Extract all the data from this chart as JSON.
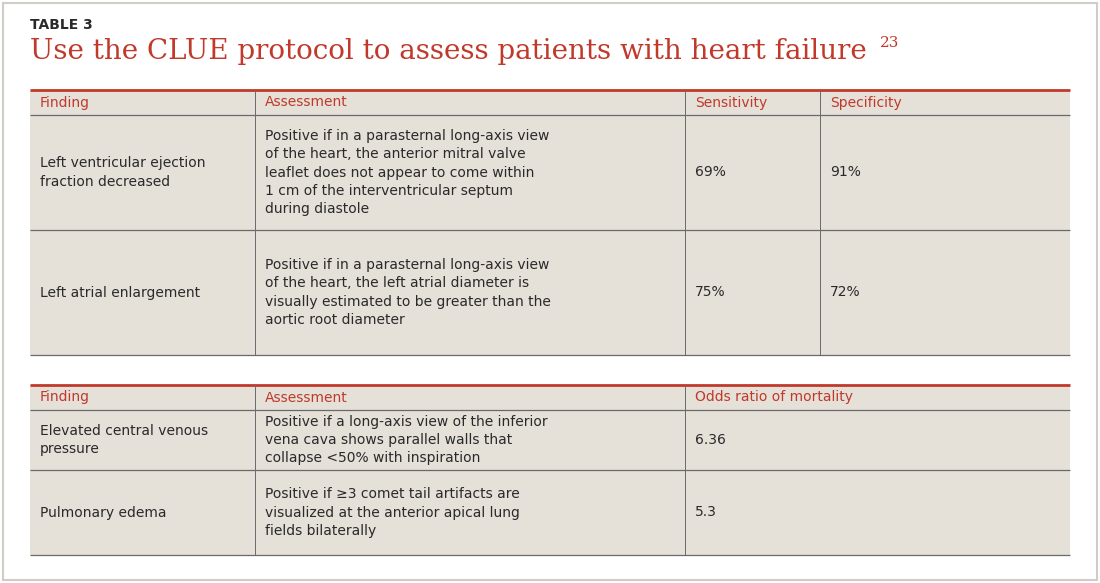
{
  "background_color": "#ffffff",
  "outer_border_color": "#d0ccc8",
  "table_bg_color": "#e5e0d8",
  "header_text_color": "#c0392b",
  "body_text_color": "#2a2a2a",
  "title_label": "TABLE 3",
  "title_main": "Use the CLUE protocol to assess patients with heart failure",
  "title_superscript": "23",
  "red_line_color": "#c0392b",
  "dark_line_color": "#6a6a6a",
  "table1": {
    "headers": [
      "Finding",
      "Assessment",
      "Sensitivity",
      "Specificity"
    ],
    "rows": [
      {
        "finding": "Left ventricular ejection\nfraction decreased",
        "assessment": "Positive if in a parasternal long-axis view\nof the heart, the anterior mitral valve\nleaflet does not appear to come within\n1 cm of the interventricular septum\nduring diastole",
        "sensitivity": "69%",
        "specificity": "91%"
      },
      {
        "finding": "Left atrial enlargement",
        "assessment": "Positive if in a parasternal long-axis view\nof the heart, the left atrial diameter is\nvisually estimated to be greater than the\naortic root diameter",
        "sensitivity": "75%",
        "specificity": "72%"
      }
    ]
  },
  "table2": {
    "headers": [
      "Finding",
      "Assessment",
      "Odds ratio of mortality"
    ],
    "rows": [
      {
        "finding": "Elevated central venous\npressure",
        "assessment": "Positive if a long-axis view of the inferior\nvena cava shows parallel walls that\ncollapse <50% with inspiration",
        "odds": "6.36"
      },
      {
        "finding": "Pulmonary edema",
        "assessment": "Positive if ≥3 comet tail artifacts are\nvisualized at the anterior apical lung\nfields bilaterally",
        "odds": "5.3"
      }
    ]
  },
  "font_size_body": 10,
  "font_size_header": 10,
  "font_size_title_label": 10,
  "font_size_title_main": 20,
  "font_size_superscript": 11
}
